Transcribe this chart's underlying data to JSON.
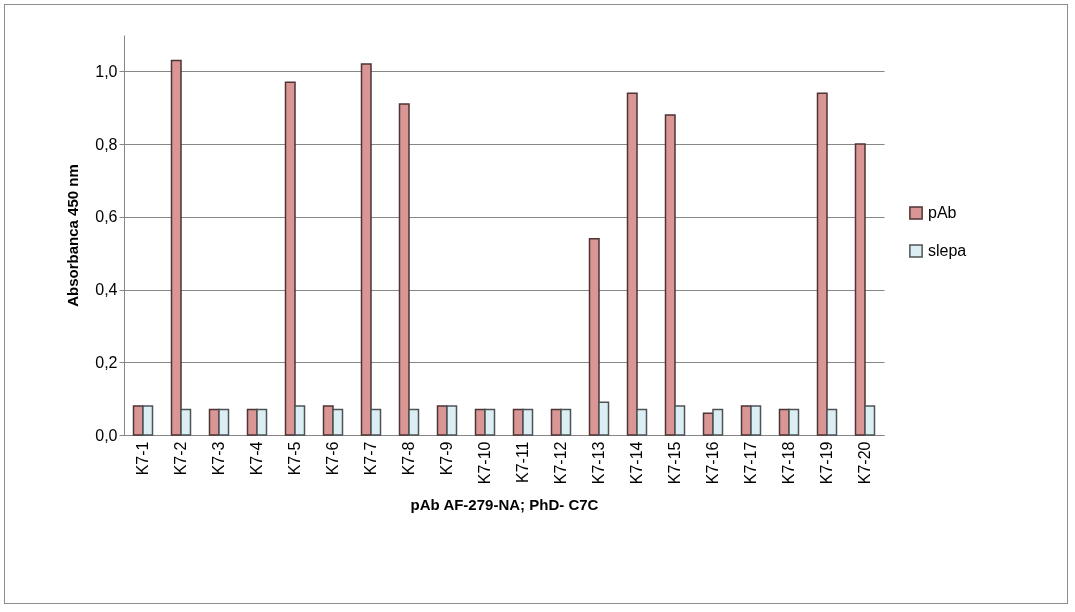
{
  "chart_data": {
    "type": "bar",
    "xlabel": "pAb AF-279-NA; PhD- C7C",
    "ylabel": "Absorbanca 450 nm",
    "categories": [
      "K7-1",
      "K7-2",
      "K7-3",
      "K7-4",
      "K7-5",
      "K7-6",
      "K7-7",
      "K7-8",
      "K7-9",
      "K7-10",
      "K7-11",
      "K7-12",
      "K7-13",
      "K7-14",
      "K7-15",
      "K7-16",
      "K7-17",
      "K7-18",
      "K7-19",
      "K7-20"
    ],
    "series": [
      {
        "name": "pAb",
        "color": "#d99694",
        "values": [
          0.08,
          1.03,
          0.07,
          0.07,
          0.97,
          0.08,
          1.02,
          0.91,
          0.08,
          0.07,
          0.07,
          0.07,
          0.54,
          0.94,
          0.88,
          0.06,
          0.08,
          0.07,
          0.94,
          0.8
        ]
      },
      {
        "name": "slepa",
        "color": "#dbeef3",
        "values": [
          0.08,
          0.07,
          0.07,
          0.07,
          0.08,
          0.07,
          0.07,
          0.07,
          0.08,
          0.07,
          0.07,
          0.07,
          0.09,
          0.07,
          0.08,
          0.07,
          0.08,
          0.07,
          0.07,
          0.08
        ]
      }
    ],
    "ylim": [
      0,
      1.1
    ],
    "yticks": [
      {
        "value": 0,
        "label": "0,0"
      },
      {
        "value": 0.2,
        "label": "0,2"
      },
      {
        "value": 0.4,
        "label": "0,4"
      },
      {
        "value": 0.6,
        "label": "0,6"
      },
      {
        "value": 0.8,
        "label": "0,8"
      },
      {
        "value": 1.0,
        "label": "1,0"
      }
    ],
    "grid": "y",
    "legend": "right"
  }
}
